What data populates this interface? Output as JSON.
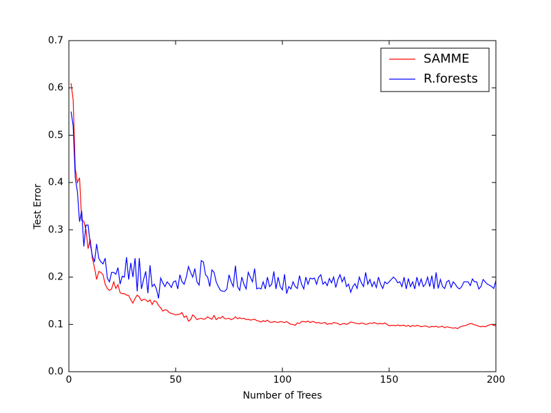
{
  "chart_data": {
    "type": "line",
    "xlabel": "Number of Trees",
    "ylabel": "Test Error",
    "xlim": [
      0,
      200
    ],
    "ylim": [
      0,
      0.7
    ],
    "xticks": [
      0,
      50,
      100,
      150,
      200
    ],
    "yticks": [
      {
        "value": 0,
        "label": "0.0"
      },
      0.1,
      0.2,
      0.3,
      0.4,
      0.5,
      0.6,
      0.7
    ],
    "legend": "upper right",
    "grid": false,
    "x": [
      1,
      2,
      3,
      4,
      5,
      6,
      7,
      8,
      9,
      10,
      11,
      12,
      13,
      14,
      15,
      16,
      17,
      18,
      19,
      20,
      21,
      22,
      23,
      24,
      25,
      26,
      27,
      28,
      29,
      30,
      31,
      32,
      33,
      34,
      35,
      36,
      37,
      38,
      39,
      40,
      41,
      42,
      43,
      44,
      45,
      46,
      47,
      48,
      49,
      50,
      51,
      52,
      53,
      54,
      55,
      56,
      57,
      58,
      59,
      60,
      61,
      62,
      63,
      64,
      65,
      66,
      67,
      68,
      69,
      70,
      71,
      72,
      73,
      74,
      75,
      76,
      77,
      78,
      79,
      80,
      81,
      82,
      83,
      84,
      85,
      86,
      87,
      88,
      89,
      90,
      91,
      92,
      93,
      94,
      95,
      96,
      97,
      98,
      99,
      100,
      101,
      102,
      103,
      104,
      105,
      106,
      107,
      108,
      109,
      110,
      111,
      112,
      113,
      114,
      115,
      116,
      117,
      118,
      119,
      120,
      121,
      122,
      123,
      124,
      125,
      126,
      127,
      128,
      129,
      130,
      131,
      132,
      133,
      134,
      135,
      136,
      137,
      138,
      139,
      140,
      141,
      142,
      143,
      144,
      145,
      146,
      147,
      148,
      149,
      150,
      151,
      152,
      153,
      154,
      155,
      156,
      157,
      158,
      159,
      160,
      161,
      162,
      163,
      164,
      165,
      166,
      167,
      168,
      169,
      170,
      171,
      172,
      173,
      174,
      175,
      176,
      177,
      178,
      179,
      180,
      181,
      182,
      183,
      184,
      185,
      186,
      187,
      188,
      189,
      190,
      191,
      192,
      193,
      194,
      195,
      196,
      197,
      198,
      199,
      200
    ],
    "series": [
      {
        "name": "SAMME",
        "color": "#ff0000",
        "values": [
          0.61,
          0.575,
          0.43,
          0.4,
          0.41,
          0.32,
          0.318,
          0.3,
          0.26,
          0.28,
          0.24,
          0.22,
          0.195,
          0.212,
          0.21,
          0.205,
          0.185,
          0.176,
          0.172,
          0.175,
          0.19,
          0.176,
          0.184,
          0.167,
          0.165,
          0.165,
          0.162,
          0.161,
          0.152,
          0.145,
          0.155,
          0.162,
          0.158,
          0.15,
          0.153,
          0.152,
          0.148,
          0.152,
          0.142,
          0.15,
          0.148,
          0.14,
          0.135,
          0.128,
          0.131,
          0.13,
          0.125,
          0.123,
          0.122,
          0.12,
          0.121,
          0.122,
          0.125,
          0.115,
          0.118,
          0.107,
          0.11,
          0.12,
          0.116,
          0.11,
          0.112,
          0.113,
          0.111,
          0.112,
          0.116,
          0.113,
          0.111,
          0.119,
          0.11,
          0.114,
          0.113,
          0.117,
          0.112,
          0.112,
          0.113,
          0.11,
          0.112,
          0.116,
          0.112,
          0.114,
          0.112,
          0.113,
          0.11,
          0.111,
          0.109,
          0.11,
          0.111,
          0.108,
          0.107,
          0.105,
          0.108,
          0.106,
          0.109,
          0.105,
          0.104,
          0.106,
          0.105,
          0.104,
          0.106,
          0.105,
          0.104,
          0.106,
          0.103,
          0.1,
          0.1,
          0.098,
          0.103,
          0.102,
          0.106,
          0.106,
          0.105,
          0.107,
          0.104,
          0.106,
          0.105,
          0.103,
          0.104,
          0.102,
          0.103,
          0.104,
          0.1,
          0.102,
          0.101,
          0.104,
          0.103,
          0.102,
          0.099,
          0.101,
          0.102,
          0.1,
          0.102,
          0.105,
          0.104,
          0.103,
          0.102,
          0.101,
          0.103,
          0.102,
          0.1,
          0.101,
          0.103,
          0.102,
          0.104,
          0.102,
          0.101,
          0.102,
          0.101,
          0.103,
          0.1,
          0.097,
          0.098,
          0.098,
          0.097,
          0.099,
          0.097,
          0.098,
          0.098,
          0.096,
          0.098,
          0.095,
          0.098,
          0.096,
          0.098,
          0.097,
          0.095,
          0.096,
          0.097,
          0.095,
          0.094,
          0.096,
          0.095,
          0.096,
          0.094,
          0.095,
          0.096,
          0.093,
          0.095,
          0.094,
          0.093,
          0.092,
          0.093,
          0.091,
          0.094,
          0.096,
          0.097,
          0.098,
          0.1,
          0.102,
          0.101,
          0.099,
          0.098,
          0.096,
          0.095,
          0.096,
          0.095,
          0.097,
          0.099,
          0.1,
          0.098,
          0.097
        ]
      },
      {
        "name": "R.forests",
        "color": "#0000ff",
        "values": [
          0.55,
          0.52,
          0.41,
          0.38,
          0.317,
          0.34,
          0.265,
          0.31,
          0.31,
          0.27,
          0.245,
          0.232,
          0.27,
          0.24,
          0.232,
          0.228,
          0.24,
          0.198,
          0.19,
          0.21,
          0.21,
          0.206,
          0.22,
          0.185,
          0.202,
          0.2,
          0.242,
          0.195,
          0.23,
          0.2,
          0.24,
          0.17,
          0.24,
          0.175,
          0.195,
          0.212,
          0.166,
          0.225,
          0.18,
          0.185,
          0.175,
          0.155,
          0.198,
          0.188,
          0.18,
          0.19,
          0.185,
          0.178,
          0.19,
          0.192,
          0.175,
          0.205,
          0.19,
          0.185,
          0.2,
          0.222,
          0.21,
          0.2,
          0.218,
          0.19,
          0.183,
          0.235,
          0.232,
          0.205,
          0.2,
          0.18,
          0.215,
          0.21,
          0.19,
          0.18,
          0.172,
          0.17,
          0.17,
          0.175,
          0.205,
          0.19,
          0.18,
          0.224,
          0.18,
          0.172,
          0.2,
          0.185,
          0.175,
          0.21,
          0.2,
          0.19,
          0.218,
          0.175,
          0.177,
          0.175,
          0.19,
          0.175,
          0.2,
          0.18,
          0.185,
          0.212,
          0.175,
          0.2,
          0.18,
          0.173,
          0.206,
          0.165,
          0.18,
          0.175,
          0.19,
          0.18,
          0.176,
          0.203,
          0.185,
          0.175,
          0.2,
          0.185,
          0.198,
          0.196,
          0.198,
          0.185,
          0.2,
          0.205,
          0.185,
          0.19,
          0.182,
          0.197,
          0.188,
          0.2,
          0.178,
          0.195,
          0.205,
          0.19,
          0.2,
          0.18,
          0.185,
          0.168,
          0.18,
          0.186,
          0.176,
          0.2,
          0.188,
          0.18,
          0.21,
          0.185,
          0.195,
          0.18,
          0.19,
          0.178,
          0.2,
          0.185,
          0.176,
          0.19,
          0.186,
          0.19,
          0.195,
          0.2,
          0.196,
          0.188,
          0.19,
          0.18,
          0.2,
          0.175,
          0.197,
          0.18,
          0.19,
          0.175,
          0.2,
          0.182,
          0.196,
          0.18,
          0.185,
          0.2,
          0.18,
          0.203,
          0.175,
          0.21,
          0.176,
          0.195,
          0.18,
          0.176,
          0.19,
          0.193,
          0.178,
          0.19,
          0.185,
          0.178,
          0.175,
          0.18,
          0.19,
          0.19,
          0.19,
          0.182,
          0.196,
          0.19,
          0.19,
          0.175,
          0.18,
          0.195,
          0.19,
          0.185,
          0.183,
          0.18,
          0.176,
          0.193
        ]
      }
    ]
  }
}
